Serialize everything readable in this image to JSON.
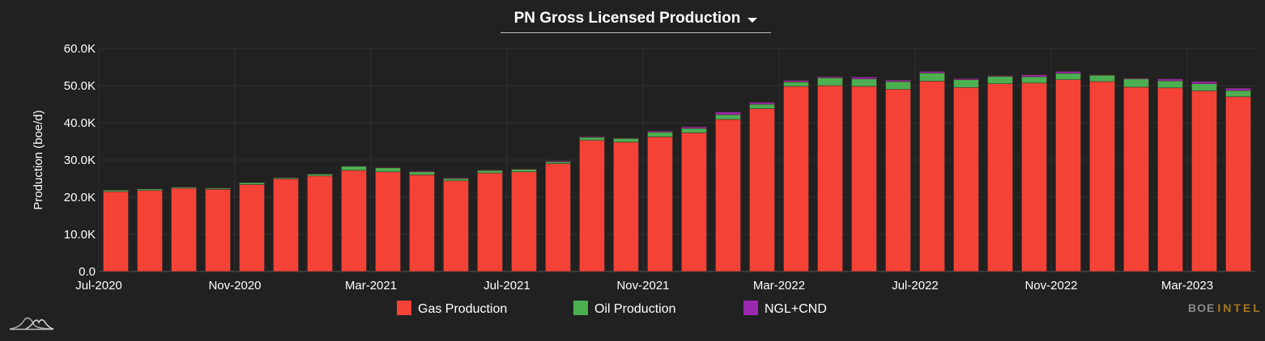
{
  "header": {
    "title": "PN Gross Licensed Production",
    "dropdown_icon": "caret-down-icon"
  },
  "brand": {
    "part1": "BOE",
    "part2": "INTEL",
    "logo_icon": "mountain-waves-logo-icon"
  },
  "chart_data": {
    "type": "bar",
    "stacked": true,
    "ylabel": "Production (boe/d)",
    "ylim": [
      0,
      60000
    ],
    "yticks": [
      "0.0",
      "10.0K",
      "20.0K",
      "30.0K",
      "40.0K",
      "50.0K",
      "60.0K"
    ],
    "xtick_labels": [
      "Jul-2020",
      "Nov-2020",
      "Mar-2021",
      "Jul-2021",
      "Nov-2021",
      "Mar-2022",
      "Jul-2022",
      "Nov-2022",
      "Mar-2023"
    ],
    "grid": true,
    "legend_position": "bottom",
    "categories": [
      "Jul-2020",
      "Aug-2020",
      "Sep-2020",
      "Oct-2020",
      "Nov-2020",
      "Dec-2020",
      "Jan-2021",
      "Feb-2021",
      "Mar-2021",
      "Apr-2021",
      "May-2021",
      "Jun-2021",
      "Jul-2021",
      "Aug-2021",
      "Sep-2021",
      "Oct-2021",
      "Nov-2021",
      "Dec-2021",
      "Jan-2022",
      "Feb-2022",
      "Mar-2022",
      "Apr-2022",
      "May-2022",
      "Jun-2022",
      "Jul-2022",
      "Aug-2022",
      "Sep-2022",
      "Oct-2022",
      "Nov-2022",
      "Dec-2022",
      "Jan-2023",
      "Feb-2023",
      "Mar-2023",
      "Apr-2023"
    ],
    "series": [
      {
        "name": "Gas Production",
        "color": "#f44336",
        "values": [
          21500,
          21800,
          22400,
          22100,
          23400,
          24900,
          25700,
          27200,
          26800,
          26000,
          24400,
          26500,
          26800,
          29000,
          35300,
          34800,
          36200,
          37300,
          40900,
          43800,
          49800,
          50000,
          49800,
          49000,
          51200,
          49500,
          50500,
          50700,
          51600,
          51100,
          49600,
          49400,
          48600,
          47000
        ]
      },
      {
        "name": "Oil Production",
        "color": "#4caf50",
        "values": [
          400,
          400,
          300,
          300,
          500,
          300,
          500,
          1100,
          1100,
          800,
          600,
          700,
          700,
          500,
          800,
          1000,
          1300,
          1200,
          1300,
          1200,
          1200,
          2100,
          2000,
          2100,
          2200,
          2100,
          2000,
          1700,
          1700,
          1700,
          2200,
          1900,
          1900,
          1700
        ]
      },
      {
        "name": "NGL+CND",
        "color": "#9c27b0",
        "values": [
          0,
          0,
          0,
          0,
          0,
          0,
          0,
          0,
          100,
          200,
          200,
          100,
          100,
          200,
          200,
          100,
          300,
          400,
          700,
          500,
          400,
          300,
          500,
          400,
          400,
          300,
          200,
          500,
          500,
          100,
          200,
          500,
          600,
          600
        ]
      }
    ]
  }
}
